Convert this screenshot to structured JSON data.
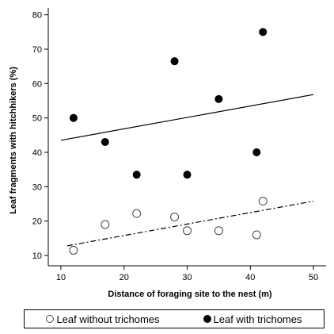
{
  "chart_data": {
    "type": "scatter",
    "xlabel": "Distance of foraging site to the nest (m)",
    "ylabel": "Leaf fragments with hitchhikers (%)",
    "xlim": [
      8,
      52
    ],
    "ylim": [
      7,
      82
    ],
    "xticks": [
      10,
      20,
      30,
      40,
      50
    ],
    "yticks": [
      10,
      20,
      30,
      40,
      50,
      60,
      70,
      80
    ],
    "series": [
      {
        "name": "Leaf without trichomes",
        "marker": "open-circle",
        "color": "#444444",
        "points": [
          {
            "x": 12,
            "y": 11.5
          },
          {
            "x": 17,
            "y": 19
          },
          {
            "x": 22,
            "y": 22.2
          },
          {
            "x": 28,
            "y": 21.2
          },
          {
            "x": 30,
            "y": 17.2
          },
          {
            "x": 35,
            "y": 17.2
          },
          {
            "x": 41,
            "y": 16
          },
          {
            "x": 42,
            "y": 25.8
          }
        ],
        "trendline": {
          "style": "dash-dot",
          "from": {
            "x": 11,
            "y": 12.8
          },
          "to": {
            "x": 50,
            "y": 25.8
          }
        }
      },
      {
        "name": "Leaf with trichomes",
        "marker": "filled-circle",
        "color": "#000000",
        "points": [
          {
            "x": 12,
            "y": 50
          },
          {
            "x": 17,
            "y": 43
          },
          {
            "x": 22,
            "y": 33.5
          },
          {
            "x": 28,
            "y": 66.5
          },
          {
            "x": 30,
            "y": 33.5
          },
          {
            "x": 35,
            "y": 55.5
          },
          {
            "x": 41,
            "y": 40
          },
          {
            "x": 42,
            "y": 75
          }
        ],
        "trendline": {
          "style": "solid",
          "from": {
            "x": 10,
            "y": 43.5
          },
          "to": {
            "x": 50,
            "y": 56.8
          }
        }
      }
    ],
    "legend": {
      "position": "bottom",
      "entries": [
        "Leaf without trichomes",
        "Leaf with trichomes"
      ]
    }
  }
}
